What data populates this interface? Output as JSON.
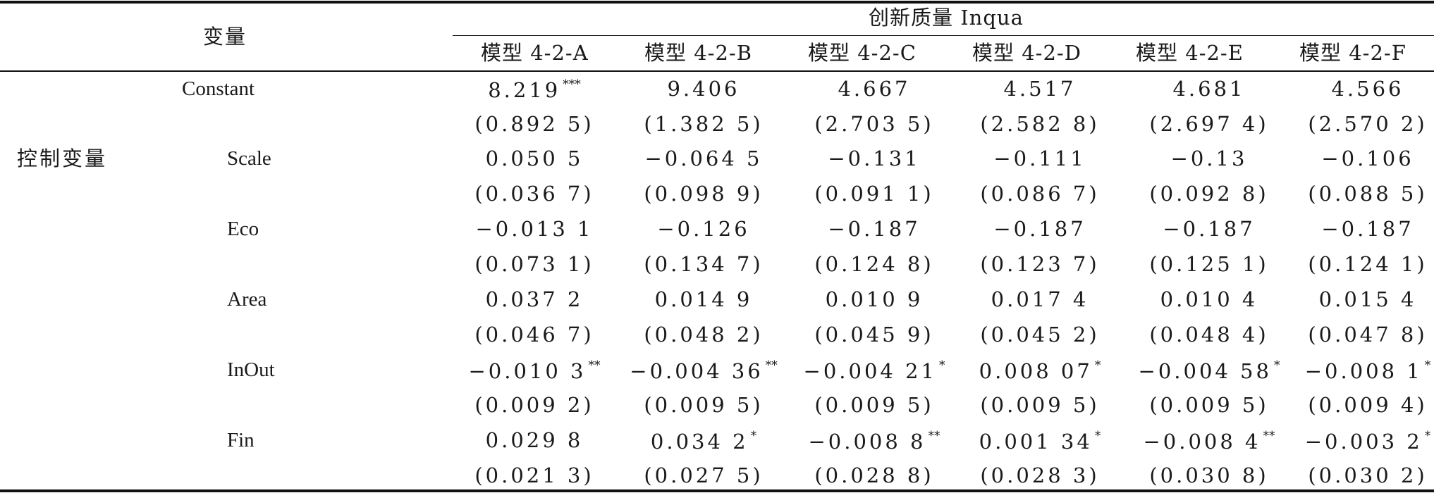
{
  "header": {
    "variable_label": "变量",
    "group_label": "创新质量 Inqua",
    "models": [
      "模型 4-2-A",
      "模型 4-2-B",
      "模型 4-2-C",
      "模型 4-2-D",
      "模型 4-2-E",
      "模型 4-2-F"
    ]
  },
  "groups": {
    "control": "控制变量"
  },
  "rows": [
    {
      "name": "Constant",
      "coef": [
        "8.219",
        "9.406",
        "4.667",
        "4.517",
        "4.681",
        "4.566"
      ],
      "sig": [
        "***",
        "",
        "",
        "",
        "",
        ""
      ],
      "se": [
        "(0.892 5)",
        "(1.382 5)",
        "(2.703 5)",
        "(2.582 8)",
        "(2.697 4)",
        "(2.570 2)"
      ]
    },
    {
      "name": "Scale",
      "coef": [
        "0.050 5",
        "−0.064 5",
        "−0.131",
        "−0.111",
        "−0.13",
        "−0.106"
      ],
      "sig": [
        "",
        "",
        "",
        "",
        "",
        ""
      ],
      "se": [
        "(0.036 7)",
        "(0.098 9)",
        "(0.091 1)",
        "(0.086 7)",
        "(0.092 8)",
        "(0.088 5)"
      ]
    },
    {
      "name": "Eco",
      "coef": [
        "−0.013 1",
        "−0.126",
        "−0.187",
        "−0.187",
        "−0.187",
        "−0.187"
      ],
      "sig": [
        "",
        "",
        "",
        "",
        "",
        ""
      ],
      "se": [
        "(0.073 1)",
        "(0.134 7)",
        "(0.124 8)",
        "(0.123 7)",
        "(0.125 1)",
        "(0.124 1)"
      ]
    },
    {
      "name": "Area",
      "coef": [
        "0.037 2",
        "0.014 9",
        "0.010 9",
        "0.017 4",
        "0.010 4",
        "0.015 4"
      ],
      "sig": [
        "",
        "",
        "",
        "",
        "",
        ""
      ],
      "se": [
        "(0.046 7)",
        "(0.048 2)",
        "(0.045 9)",
        "(0.045 2)",
        "(0.048 4)",
        "(0.047 8)"
      ]
    },
    {
      "name": "InOut",
      "coef": [
        "−0.010 3",
        "−0.004 36",
        "−0.004 21",
        "0.008 07",
        "−0.004 58",
        "−0.008 1"
      ],
      "sig": [
        "**",
        "**",
        "*",
        "*",
        "*",
        "*"
      ],
      "se": [
        "(0.009 2)",
        "(0.009 5)",
        "(0.009 5)",
        "(0.009 5)",
        "(0.009 5)",
        "(0.009 4)"
      ]
    },
    {
      "name": "Fin",
      "coef": [
        "0.029 8",
        "0.034 2",
        "−0.008 8",
        "0.001 34",
        "−0.008 4",
        "−0.003 2"
      ],
      "sig": [
        "",
        "*",
        "**",
        "*",
        "**",
        "*"
      ],
      "se": [
        "(0.021 3)",
        "(0.027 5)",
        "(0.028 8)",
        "(0.028 3)",
        "(0.030 8)",
        "(0.030 2)"
      ]
    }
  ]
}
